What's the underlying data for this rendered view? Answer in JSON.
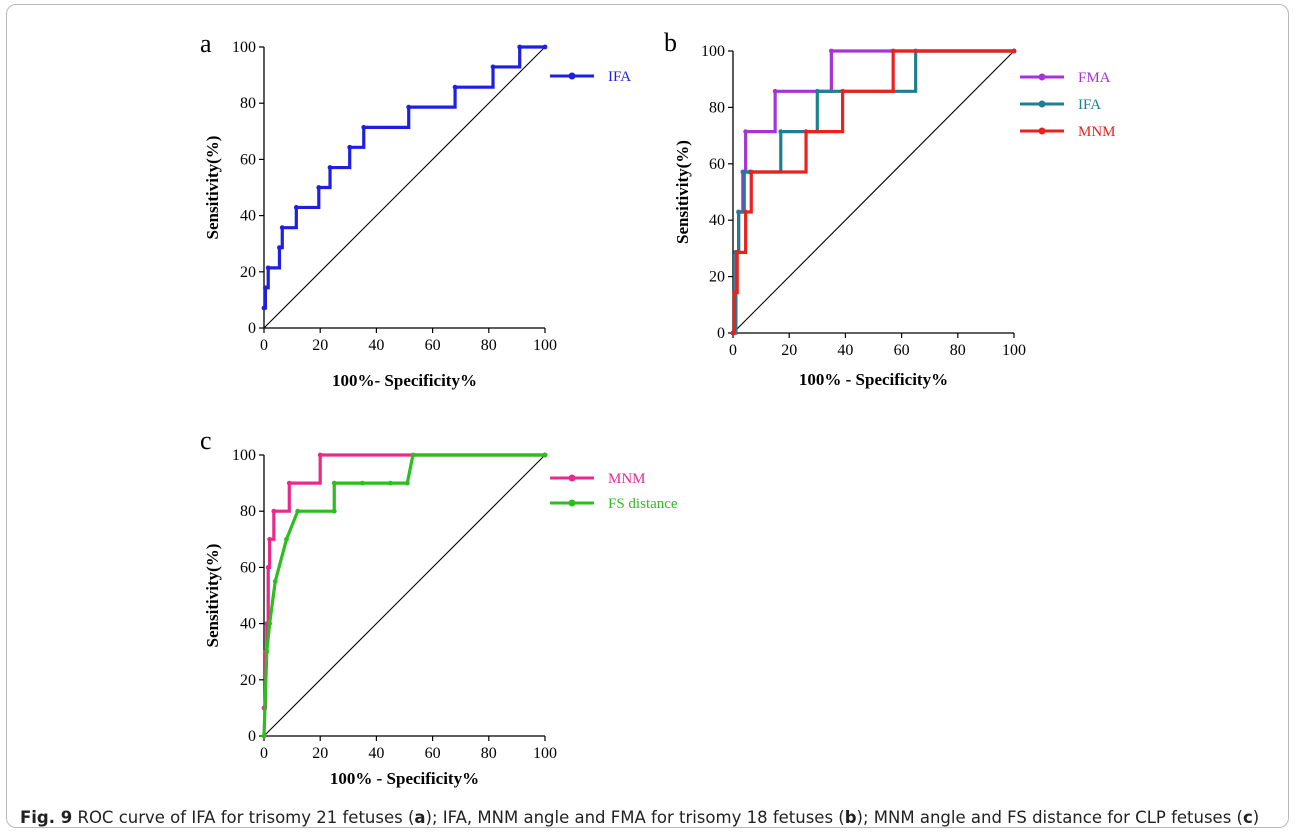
{
  "figure": {
    "caption": {
      "label": "Fig. 9",
      "segments": [
        {
          "text": "ROC curve of IFA for trisomy 21 fetuses (",
          "bold": false
        },
        {
          "text": "a",
          "bold": true
        },
        {
          "text": "); IFA, MNM angle and FMA for trisomy 18 fetuses (",
          "bold": false
        },
        {
          "text": "b",
          "bold": true
        },
        {
          "text": "); MNM angle and FS distance for CLP fetuses (",
          "bold": false
        },
        {
          "text": "c",
          "bold": true
        },
        {
          "text": ")",
          "bold": false
        }
      ]
    }
  },
  "chart_data": [
    {
      "panel": "a",
      "type": "line",
      "xlabel": "100%- Specificity%",
      "ylabel": "Sensitivity(%)",
      "xlim": [
        0,
        100
      ],
      "ylim": [
        0,
        100
      ],
      "xticks": [
        0,
        20,
        40,
        60,
        80,
        100
      ],
      "yticks": [
        0,
        20,
        40,
        60,
        80,
        100
      ],
      "reference_line": true,
      "legend_position": "right",
      "series": [
        {
          "name": "IFA",
          "color": "#1f1fe0",
          "marker": "dot",
          "step": true,
          "x": [
            0,
            0.5,
            1.5,
            5.5,
            6.5,
            11.5,
            19.5,
            23.5,
            30.5,
            35.5,
            51.5,
            68,
            81.5,
            91,
            100
          ],
          "y": [
            7.1,
            14.3,
            21.4,
            28.6,
            35.7,
            42.9,
            50,
            57.1,
            64.3,
            71.4,
            78.6,
            85.7,
            92.9,
            100,
            100
          ]
        }
      ]
    },
    {
      "panel": "b",
      "type": "line",
      "xlabel": "100% - Specificity%",
      "ylabel": "Sensitivity(%)",
      "xlim": [
        0,
        100
      ],
      "ylim": [
        0,
        100
      ],
      "xticks": [
        0,
        20,
        40,
        60,
        80,
        100
      ],
      "yticks": [
        0,
        20,
        40,
        60,
        80,
        100
      ],
      "reference_line": true,
      "legend_position": "right",
      "series": [
        {
          "name": "FMA",
          "color": "#a633d6",
          "marker": "dot",
          "step": true,
          "x": [
            0,
            1,
            2,
            3.5,
            4.5,
            15,
            35,
            100
          ],
          "y": [
            0,
            28.6,
            42.9,
            57.1,
            71.4,
            85.7,
            100,
            100
          ]
        },
        {
          "name": "IFA",
          "color": "#1d7f91",
          "marker": "dot",
          "step": true,
          "x": [
            0,
            1,
            2,
            4,
            6,
            17,
            30,
            65,
            100
          ],
          "y": [
            0,
            28.6,
            42.9,
            57.1,
            57.1,
            71.4,
            85.7,
            100,
            100
          ]
        },
        {
          "name": "MNM",
          "color": "#e8231e",
          "marker": "dot",
          "step": true,
          "x": [
            0,
            0.5,
            1.5,
            4.5,
            6.5,
            26,
            39,
            57,
            100
          ],
          "y": [
            0,
            14.3,
            28.6,
            42.9,
            57.1,
            71.4,
            85.7,
            100,
            100
          ]
        }
      ]
    },
    {
      "panel": "c",
      "type": "line",
      "xlabel": "100% - Specificity%",
      "ylabel": "Sensitivity(%)",
      "xlim": [
        0,
        100
      ],
      "ylim": [
        0,
        100
      ],
      "xticks": [
        0,
        20,
        40,
        60,
        80,
        100
      ],
      "yticks": [
        0,
        20,
        40,
        60,
        80,
        100
      ],
      "reference_line": true,
      "legend_position": "right",
      "series": [
        {
          "name": "MNM",
          "color": "#e82a8c",
          "marker": "dot",
          "step": true,
          "x": [
            0,
            0.5,
            1,
            1.5,
            2,
            3.5,
            9,
            20,
            100
          ],
          "y": [
            10,
            30,
            40,
            60,
            70,
            80,
            90,
            100,
            100
          ]
        },
        {
          "name": "FS distance",
          "color": "#2cbd1e",
          "marker": "dot",
          "step": false,
          "x": [
            0,
            1,
            2,
            4,
            8,
            12,
            25,
            25,
            35,
            45,
            51,
            53,
            100
          ],
          "y": [
            0,
            30,
            40,
            55,
            70,
            80,
            80,
            90,
            90,
            90,
            90,
            100,
            100
          ]
        }
      ]
    }
  ]
}
